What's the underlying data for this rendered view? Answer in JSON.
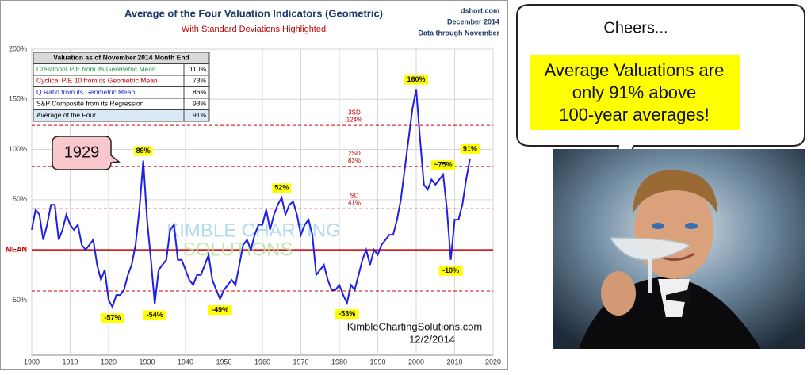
{
  "chart_data": {
    "type": "line",
    "title": "Average of the Four Valuation Indicators (Geometric)",
    "subtitle": "With Standard Deviations Highlighted",
    "source": [
      "dshort.com",
      "December 2014",
      "Data through November"
    ],
    "x": [
      1900,
      1901,
      1902,
      1903,
      1904,
      1905,
      1906,
      1907,
      1908,
      1909,
      1910,
      1911,
      1912,
      1913,
      1914,
      1915,
      1916,
      1917,
      1918,
      1919,
      1920,
      1921,
      1922,
      1923,
      1924,
      1925,
      1926,
      1927,
      1928,
      1929,
      1930,
      1931,
      1932,
      1933,
      1934,
      1935,
      1936,
      1937,
      1938,
      1939,
      1940,
      1941,
      1942,
      1943,
      1944,
      1945,
      1946,
      1947,
      1948,
      1949,
      1950,
      1951,
      1952,
      1953,
      1954,
      1955,
      1956,
      1957,
      1958,
      1959,
      1960,
      1961,
      1962,
      1963,
      1964,
      1965,
      1966,
      1967,
      1968,
      1969,
      1970,
      1971,
      1972,
      1973,
      1974,
      1975,
      1976,
      1977,
      1978,
      1979,
      1980,
      1981,
      1982,
      1983,
      1984,
      1985,
      1986,
      1987,
      1988,
      1989,
      1990,
      1991,
      1992,
      1993,
      1994,
      1995,
      1996,
      1997,
      1998,
      1999,
      2000,
      2001,
      2002,
      2003,
      2004,
      2005,
      2006,
      2007,
      2008,
      2009,
      2010,
      2011,
      2012,
      2013,
      2014
    ],
    "series": [
      {
        "name": "Average of the Four",
        "color": "#1f1fe6",
        "values": [
          20,
          40,
          35,
          10,
          25,
          45,
          45,
          10,
          20,
          35,
          25,
          20,
          25,
          5,
          0,
          5,
          10,
          -15,
          -30,
          -20,
          -50,
          -57,
          -45,
          -45,
          -40,
          -25,
          -15,
          5,
          40,
          89,
          30,
          -10,
          -54,
          -20,
          -15,
          -10,
          20,
          25,
          -10,
          -10,
          -20,
          -30,
          -35,
          -25,
          -25,
          -15,
          -5,
          -30,
          -40,
          -49,
          -40,
          -35,
          -30,
          -35,
          -15,
          5,
          10,
          0,
          15,
          25,
          25,
          40,
          20,
          35,
          45,
          52,
          35,
          45,
          48,
          35,
          15,
          25,
          30,
          15,
          -25,
          -20,
          -15,
          -30,
          -40,
          -40,
          -35,
          -45,
          -53,
          -35,
          -40,
          -25,
          -10,
          0,
          -15,
          0,
          -5,
          5,
          10,
          15,
          15,
          30,
          50,
          80,
          110,
          140,
          160,
          110,
          65,
          60,
          70,
          65,
          70,
          75,
          40,
          -10,
          30,
          30,
          45,
          70,
          91
        ]
      }
    ],
    "xlim": [
      1900,
      2020
    ],
    "xticks": [
      1900,
      1910,
      1920,
      1930,
      1940,
      1950,
      1960,
      1970,
      1980,
      1990,
      2000,
      2010,
      2020
    ],
    "ylim": [
      -105,
      200
    ],
    "yticks": [
      {
        "value": -50,
        "label": "-50%"
      },
      {
        "value": 0,
        "label": "MEAN"
      },
      {
        "value": 50,
        "label": "50%"
      },
      {
        "value": 100,
        "label": "100%"
      },
      {
        "value": 150,
        "label": "150%"
      },
      {
        "value": 200,
        "label": "200%"
      }
    ],
    "grid": true,
    "reference_lines": [
      {
        "name": "3SD",
        "value": 124,
        "label": "124%"
      },
      {
        "name": "2SD",
        "value": 83,
        "label": "83%"
      },
      {
        "name": "SD",
        "value": 41,
        "label": "41%"
      },
      {
        "value": -41
      }
    ],
    "annotations": [
      {
        "text": "-57%",
        "x": 1921,
        "y": -57
      },
      {
        "text": "89%",
        "x": 1929,
        "y": 89
      },
      {
        "text": "-54%",
        "x": 1932,
        "y": -54
      },
      {
        "text": "-49%",
        "x": 1949,
        "y": -49
      },
      {
        "text": "52%",
        "x": 1965,
        "y": 52
      },
      {
        "text": "-53%",
        "x": 1982,
        "y": -53
      },
      {
        "text": "160%",
        "x": 2000,
        "y": 160
      },
      {
        "text": "~75%",
        "x": 2007,
        "y": 75
      },
      {
        "text": "-10%",
        "x": 2009,
        "y": -10
      },
      {
        "text": "91%",
        "x": 2014,
        "y": 91
      }
    ],
    "table": {
      "title": "Valuation as of November 2014 Month End",
      "rows": [
        [
          "Crestmont P/E from its Geometric Mean",
          "110%"
        ],
        [
          "Cyclical P/E 10 from its Geometric Mean",
          "73%"
        ],
        [
          "Q Ratio from its Geometric Mean",
          "86%"
        ],
        [
          "S&P Composite from its Regression",
          "93%"
        ],
        [
          "Average of the Four",
          "91%"
        ]
      ],
      "colors": [
        "#1a9a46",
        "#c00000",
        "#1f2fc0",
        "#000000",
        "#000000"
      ]
    },
    "watermark": [
      "KIMBLE CHARTING",
      "SOLUTIONS"
    ],
    "credit": [
      "KimbleChartingSolutions.com",
      "12/2/2014"
    ],
    "callout": "1929"
  },
  "bubble": {
    "title": "Cheers...",
    "lines": [
      "Average Valuations are",
      "only 91% above",
      "100-year averages!"
    ]
  }
}
